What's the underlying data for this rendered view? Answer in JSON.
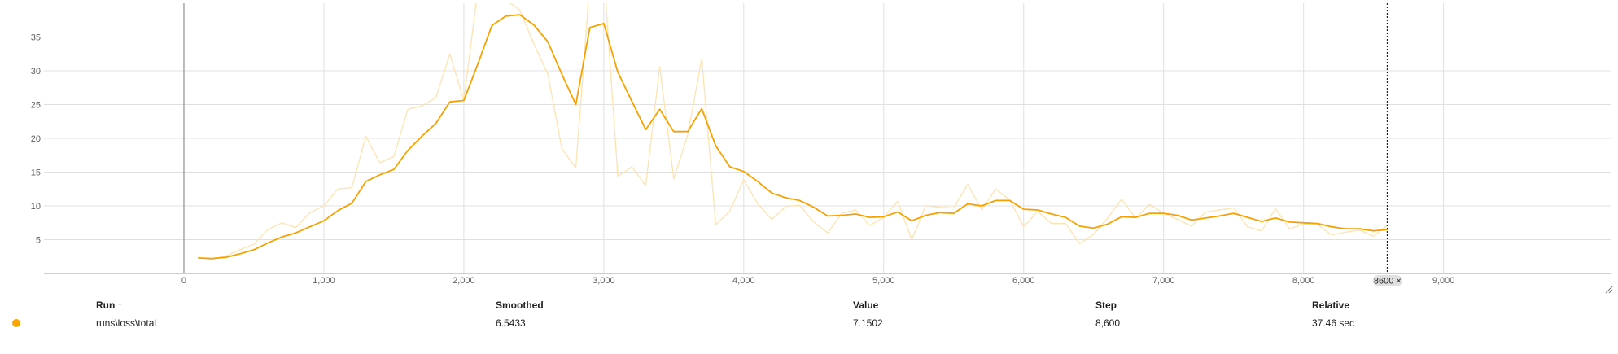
{
  "colors": {
    "line": "#f5a200",
    "raw_line": "#fde3b0",
    "grid": "#e0e0e0",
    "axis": "#9e9e9e",
    "run_dot": "#f9a602"
  },
  "chart_data": {
    "type": "line",
    "xlim": [
      -1000,
      10200
    ],
    "ylim": [
      0,
      40
    ],
    "x_ticks": [
      0,
      1000,
      2000,
      3000,
      4000,
      5000,
      6000,
      7000,
      8000,
      9000
    ],
    "x_tick_labels": [
      "0",
      "1,000",
      "2,000",
      "3,000",
      "4,000",
      "5,000",
      "6,000",
      "7,000",
      "8,000",
      "9,000"
    ],
    "y_ticks": [
      5,
      10,
      15,
      20,
      25,
      30,
      35
    ],
    "y_tick_labels": [
      "5",
      "10",
      "15",
      "20",
      "25",
      "30",
      "35"
    ],
    "grid": true,
    "hover_step": 8600,
    "hover_label": "8600 ×",
    "series": [
      {
        "role": "smoothed",
        "x": [
          100,
          200,
          300,
          400,
          500,
          600,
          700,
          800,
          900,
          1000,
          1100,
          1200,
          1300,
          1400,
          1500,
          1600,
          1700,
          1800,
          1900,
          2000,
          2100,
          2200,
          2300,
          2400,
          2500,
          2600,
          2700,
          2800,
          2900,
          3000,
          3100,
          3200,
          3300,
          3400,
          3500,
          3600,
          3700,
          3800,
          3900,
          4000,
          4100,
          4200,
          4300,
          4400,
          4500,
          4600,
          4700,
          4800,
          4900,
          5000,
          5100,
          5200,
          5300,
          5400,
          5500,
          5600,
          5700,
          5800,
          5900,
          6000,
          6100,
          6200,
          6300,
          6400,
          6500,
          6600,
          6700,
          6800,
          6900,
          7000,
          7100,
          7200,
          7300,
          7400,
          7500,
          7600,
          7700,
          7800,
          7900,
          8000,
          8100,
          8200,
          8300,
          8400,
          8500,
          8600
        ],
        "y": [
          2.3,
          2.2,
          2.4,
          2.9,
          3.5,
          4.5,
          5.4,
          6.0,
          6.9,
          7.8,
          9.3,
          10.4,
          13.6,
          14.6,
          15.4,
          18.2,
          20.3,
          22.2,
          25.4,
          25.6,
          31.0,
          36.7,
          38.1,
          38.3,
          36.8,
          34.3,
          29.5,
          25.0,
          36.4,
          37.0,
          29.8,
          25.5,
          21.3,
          24.3,
          21.0,
          21.0,
          24.4,
          18.9,
          15.8,
          15.1,
          13.6,
          11.9,
          11.2,
          10.8,
          9.8,
          8.5,
          8.6,
          8.8,
          8.3,
          8.4,
          9.1,
          7.8,
          8.6,
          9.0,
          8.9,
          10.3,
          10.0,
          10.8,
          10.8,
          9.5,
          9.4,
          8.8,
          8.3,
          7.0,
          6.7,
          7.3,
          8.4,
          8.3,
          8.9,
          8.9,
          8.6,
          7.9,
          8.2,
          8.5,
          8.9,
          8.3,
          7.7,
          8.2,
          7.6,
          7.5,
          7.4,
          6.9,
          6.6,
          6.6,
          6.3,
          6.5
        ]
      },
      {
        "role": "raw",
        "x": [
          100,
          200,
          300,
          400,
          500,
          600,
          700,
          800,
          900,
          1000,
          1100,
          1200,
          1300,
          1400,
          1500,
          1600,
          1700,
          1800,
          1900,
          2000,
          2100,
          2200,
          2300,
          2400,
          2500,
          2600,
          2700,
          2800,
          2900,
          3000,
          3100,
          3200,
          3300,
          3400,
          3500,
          3600,
          3700,
          3800,
          3900,
          4000,
          4100,
          4200,
          4300,
          4400,
          4500,
          4600,
          4700,
          4800,
          4900,
          5000,
          5100,
          5200,
          5300,
          5400,
          5500,
          5600,
          5700,
          5800,
          5900,
          6000,
          6100,
          6200,
          6300,
          6400,
          6500,
          6600,
          6700,
          6800,
          6900,
          7000,
          7100,
          7200,
          7300,
          7400,
          7500,
          7600,
          7700,
          7800,
          7900,
          8000,
          8100,
          8200,
          8300,
          8400,
          8500,
          8600
        ],
        "y": [
          2.3,
          2.1,
          2.6,
          3.5,
          4.3,
          6.5,
          7.5,
          6.8,
          9.0,
          10.0,
          12.5,
          12.7,
          20.3,
          16.4,
          17.3,
          24.3,
          24.8,
          26.0,
          32.5,
          25.6,
          42.0,
          44.0,
          40.5,
          39.0,
          34.0,
          29.5,
          18.5,
          15.6,
          43.0,
          44.5,
          14.4,
          15.8,
          13.0,
          30.6,
          14.0,
          20.5,
          31.8,
          7.2,
          9.2,
          13.9,
          10.3,
          8.0,
          9.9,
          10.1,
          7.6,
          6.0,
          8.9,
          9.4,
          7.1,
          8.3,
          10.7,
          5.0,
          10.0,
          9.8,
          9.7,
          13.2,
          9.4,
          12.5,
          10.9,
          6.9,
          9.2,
          7.4,
          7.4,
          4.4,
          5.8,
          8.2,
          11.0,
          8.2,
          10.2,
          8.9,
          8.0,
          7.0,
          9.1,
          9.4,
          9.7,
          6.9,
          6.3,
          9.6,
          6.6,
          7.3,
          7.2,
          5.7,
          6.1,
          6.4,
          5.5,
          7.2
        ]
      }
    ]
  },
  "table": {
    "headers": {
      "run": "Run ↑",
      "smoothed": "Smoothed",
      "value": "Value",
      "step": "Step",
      "relative": "Relative"
    },
    "rows": [
      {
        "run": "runs\\loss\\total",
        "smoothed": "6.5433",
        "value": "7.1502",
        "step": "8,600",
        "relative": "37.46 sec"
      }
    ]
  }
}
